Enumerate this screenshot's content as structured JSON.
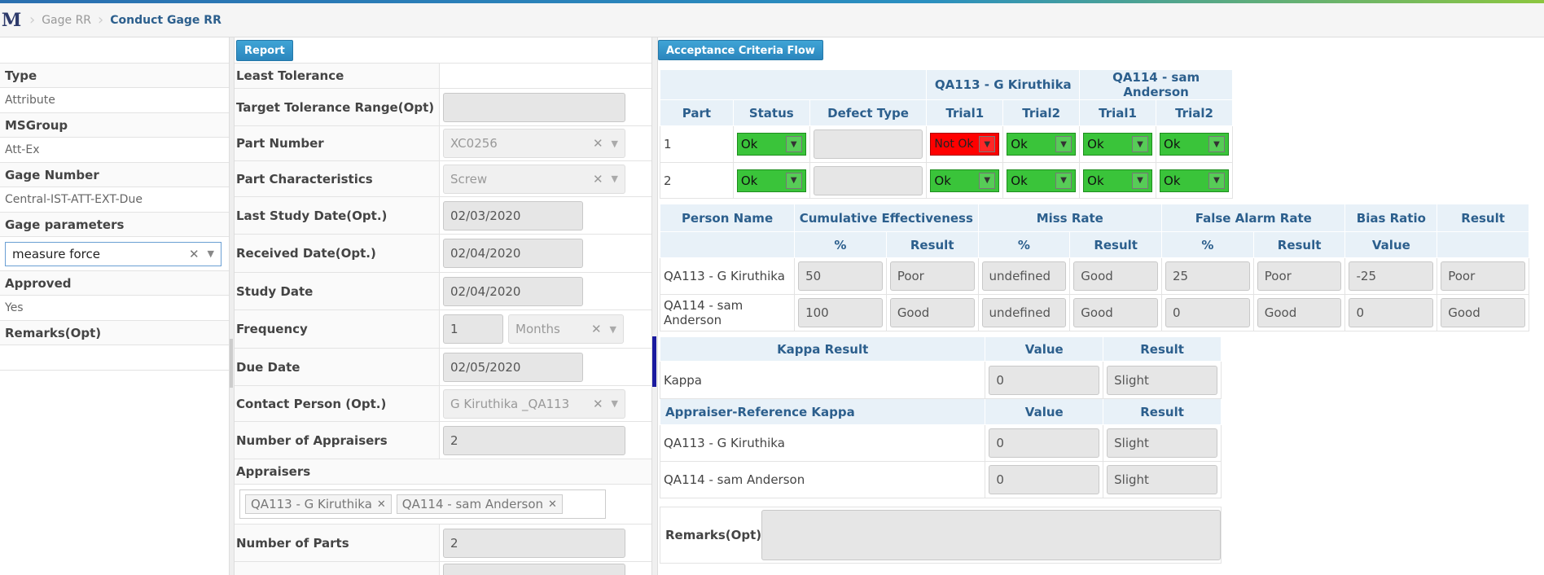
{
  "breadcrumb": {
    "logo": "M",
    "items": [
      "Gage RR",
      "Conduct Gage RR"
    ]
  },
  "left": {
    "rows": [
      {
        "label": "Type",
        "value": "Attribute"
      },
      {
        "label": "MSGroup",
        "value": "Att-Ex"
      },
      {
        "label": "Gage Number",
        "value": "Central-IST-ATT-EXT-Due"
      },
      {
        "label": "Gage parameters",
        "combo": "measure force"
      },
      {
        "label": "Approved",
        "value": "Yes"
      },
      {
        "label": "Remarks(Opt)",
        "value": ""
      }
    ]
  },
  "mid": {
    "report_button": "Report",
    "least_tolerance": "Least Tolerance",
    "target_tolerance": "Target Tolerance Range(Opt)",
    "part_number": {
      "label": "Part Number",
      "value": "XC0256"
    },
    "part_char": {
      "label": "Part Characteristics",
      "value": "Screw"
    },
    "last_study": {
      "label": "Last Study Date(Opt.)",
      "value": "02/03/2020"
    },
    "received": {
      "label": "Received Date(Opt.)",
      "value": "02/04/2020"
    },
    "study": {
      "label": "Study Date",
      "value": "02/04/2020"
    },
    "frequency": {
      "label": "Frequency",
      "value": "1",
      "unit": "Months"
    },
    "due": {
      "label": "Due Date",
      "value": "02/05/2020"
    },
    "contact": {
      "label": "Contact Person (Opt.)",
      "value": "G Kiruthika _QA113"
    },
    "num_appraisers": {
      "label": "Number of Appraisers",
      "value": "2"
    },
    "appraisers_label": "Appraisers",
    "appraisers": [
      "QA113 - G Kiruthika",
      "QA114 - sam Anderson"
    ],
    "num_parts": {
      "label": "Number of Parts",
      "value": "2"
    }
  },
  "right": {
    "acc_button": "Acceptance Criteria Flow",
    "trial_table": {
      "groups": [
        "QA113 - G Kiruthika",
        "QA114 - sam Anderson"
      ],
      "headers": [
        "Part",
        "Status",
        "Defect Type",
        "Trial1",
        "Trial2",
        "Trial1",
        "Trial2"
      ],
      "rows": [
        {
          "part": "1",
          "status": "Ok",
          "trials": [
            "Not Ok",
            "Ok",
            "Ok",
            "Ok"
          ]
        },
        {
          "part": "2",
          "status": "Ok",
          "trials": [
            "Ok",
            "Ok",
            "Ok",
            "Ok"
          ]
        }
      ]
    },
    "eff_table": {
      "headers": [
        "Person Name",
        "Cumulative Effectiveness",
        "Miss Rate",
        "False Alarm Rate",
        "Bias Ratio",
        "Result"
      ],
      "sub": [
        "%",
        "Result",
        "%",
        "Result",
        "%",
        "Result",
        "Value"
      ],
      "rows": [
        {
          "name": "QA113 - G Kiruthika",
          "vals": [
            "50",
            "Poor",
            "undefined",
            "Good",
            "25",
            "Poor",
            "-25",
            "Poor"
          ]
        },
        {
          "name": "QA114 - sam Anderson",
          "vals": [
            "100",
            "Good",
            "undefined",
            "Good",
            "0",
            "Good",
            "0",
            "Good"
          ]
        }
      ]
    },
    "kappa_table": {
      "headers": [
        "Kappa Result",
        "Value",
        "Result"
      ],
      "kappa": {
        "name": "Kappa",
        "value": "0",
        "result": "Slight"
      },
      "ref_headers": [
        "Appraiser-Reference Kappa",
        "Value",
        "Result"
      ],
      "rows": [
        {
          "name": "QA113 - G Kiruthika",
          "value": "0",
          "result": "Slight"
        },
        {
          "name": "QA114 - sam Anderson",
          "value": "0",
          "result": "Slight"
        }
      ]
    },
    "remarks_label": "Remarks(Opt)"
  }
}
